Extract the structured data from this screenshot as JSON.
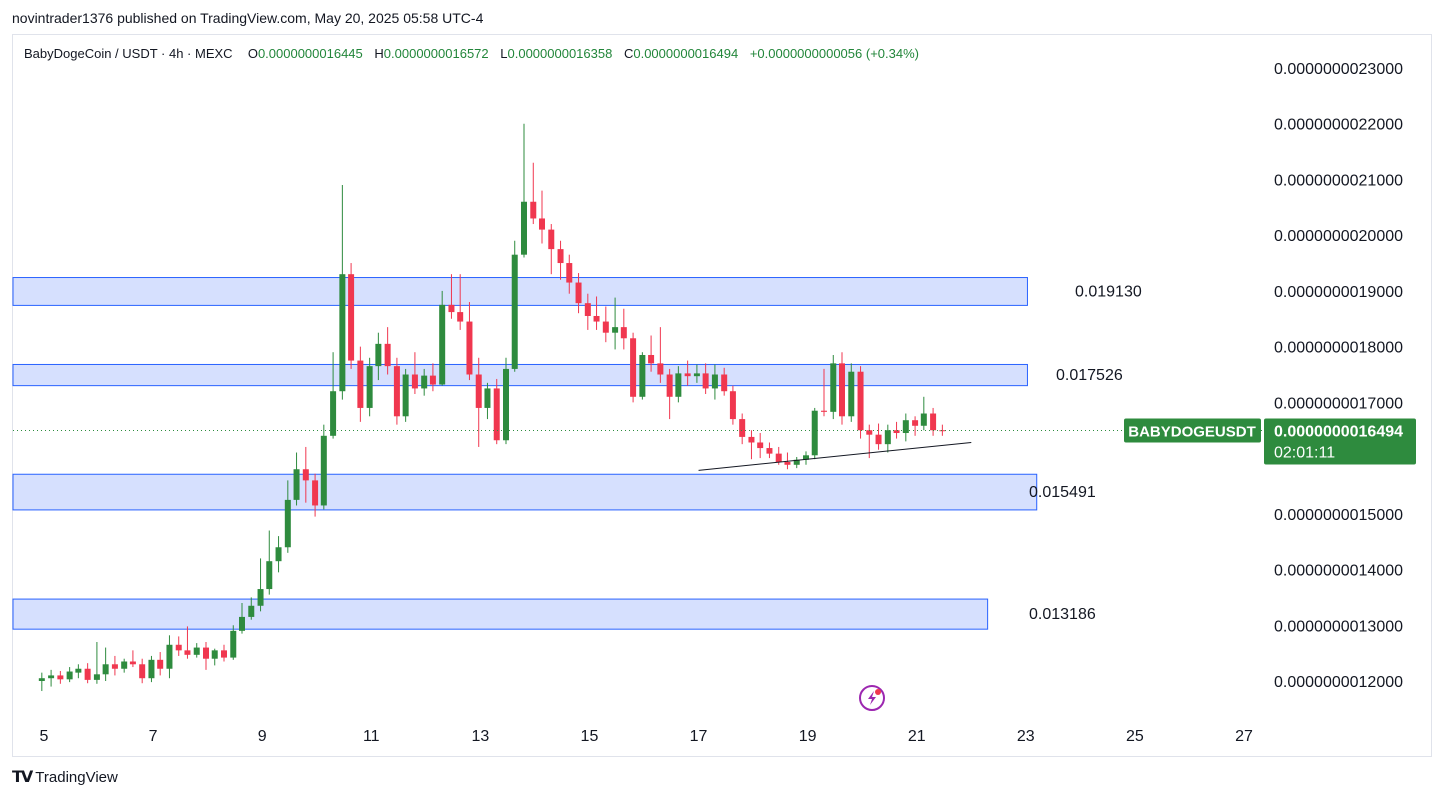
{
  "header": {
    "publisher": "novintrader1376 published on TradingView.com, May 20, 2025 05:58 UTC-4"
  },
  "legend": {
    "symbol": "BabyDogeCoin / USDT · 4h · MEXC",
    "o_label": "O",
    "o_value": "0.0000000016445",
    "h_label": "H",
    "h_value": "0.0000000016572",
    "l_label": "L",
    "l_value": "0.0000000016358",
    "c_label": "C",
    "c_value": "0.0000000016494",
    "change": "+0.0000000000056 (+0.34%)"
  },
  "price_tag": {
    "symbol": "BABYDOGEUSDT",
    "price": "0.0000000016494",
    "countdown": "02:01:11"
  },
  "colors": {
    "up": "#2e8b3e",
    "down": "#f0374f",
    "zone_fill": "#d6e0fe",
    "zone_stroke": "#2962ff",
    "tag_bg": "#2e8b3e"
  },
  "footer": {
    "brand": "TradingView"
  },
  "chart_data": {
    "type": "candlestick",
    "title": "BabyDogeCoin / USDT · 4h · MEXC",
    "price_scale": 1e-09,
    "ylim": [
      1.17,
      2.32
    ],
    "xlim": [
      4.95,
      27.3
    ],
    "x_ticks": [
      5,
      7,
      9,
      11,
      13,
      15,
      17,
      19,
      21,
      23,
      25,
      27
    ],
    "x_tick_labels": [
      "5",
      "7",
      "9",
      "11",
      "13",
      "15",
      "17",
      "19",
      "21",
      "23",
      "25",
      "27"
    ],
    "y_ticks": [
      1.2,
      1.3,
      1.4,
      1.5,
      1.6,
      1.7,
      1.8,
      1.9,
      2.0,
      2.1,
      2.2,
      2.3
    ],
    "y_tick_labels": [
      "0.0000000012000",
      "0.0000000013000",
      "0.0000000014000",
      "0.0000000015000",
      "0.0000000016000",
      "0.0000000017000",
      "0.0000000018000",
      "0.0000000019000",
      "0.0000000020000",
      "0.0000000021000",
      "0.0000000022000",
      "0.0000000023000"
    ],
    "current_price": 1.6494,
    "zones": [
      {
        "label": "0.019130",
        "top": 1.924,
        "bottom": 1.874,
        "x_end": 23.03
      },
      {
        "label": "0.017526",
        "top": 1.768,
        "bottom": 1.73,
        "x_end": 23.03
      },
      {
        "label": "0.015491",
        "top": 1.571,
        "bottom": 1.507,
        "x_end": 23.2
      },
      {
        "label": "0.013186",
        "top": 1.347,
        "bottom": 1.293,
        "x_end": 22.3
      }
    ],
    "trendline": {
      "x": [
        17.0,
        22.0
      ],
      "y": [
        1.578,
        1.628
      ]
    },
    "candles": [
      {
        "x": 4.96,
        "o": 1.2,
        "h": 1.215,
        "l": 1.182,
        "c": 1.205
      },
      {
        "x": 5.13,
        "o": 1.205,
        "h": 1.22,
        "l": 1.19,
        "c": 1.21
      },
      {
        "x": 5.3,
        "o": 1.21,
        "h": 1.218,
        "l": 1.195,
        "c": 1.203
      },
      {
        "x": 5.47,
        "o": 1.203,
        "h": 1.225,
        "l": 1.198,
        "c": 1.217
      },
      {
        "x": 5.63,
        "o": 1.215,
        "h": 1.23,
        "l": 1.205,
        "c": 1.222
      },
      {
        "x": 5.8,
        "o": 1.222,
        "h": 1.232,
        "l": 1.196,
        "c": 1.202
      },
      {
        "x": 5.97,
        "o": 1.202,
        "h": 1.27,
        "l": 1.195,
        "c": 1.212
      },
      {
        "x": 6.13,
        "o": 1.212,
        "h": 1.26,
        "l": 1.2,
        "c": 1.23
      },
      {
        "x": 6.3,
        "o": 1.23,
        "h": 1.245,
        "l": 1.21,
        "c": 1.222
      },
      {
        "x": 6.47,
        "o": 1.222,
        "h": 1.24,
        "l": 1.215,
        "c": 1.235
      },
      {
        "x": 6.63,
        "o": 1.235,
        "h": 1.255,
        "l": 1.225,
        "c": 1.23
      },
      {
        "x": 6.8,
        "o": 1.23,
        "h": 1.24,
        "l": 1.196,
        "c": 1.205
      },
      {
        "x": 6.97,
        "o": 1.205,
        "h": 1.245,
        "l": 1.198,
        "c": 1.238
      },
      {
        "x": 7.13,
        "o": 1.238,
        "h": 1.252,
        "l": 1.21,
        "c": 1.222
      },
      {
        "x": 7.3,
        "o": 1.222,
        "h": 1.282,
        "l": 1.205,
        "c": 1.265
      },
      {
        "x": 7.47,
        "o": 1.265,
        "h": 1.28,
        "l": 1.245,
        "c": 1.255
      },
      {
        "x": 7.63,
        "o": 1.255,
        "h": 1.298,
        "l": 1.24,
        "c": 1.247
      },
      {
        "x": 7.8,
        "o": 1.247,
        "h": 1.268,
        "l": 1.242,
        "c": 1.26
      },
      {
        "x": 7.97,
        "o": 1.26,
        "h": 1.27,
        "l": 1.22,
        "c": 1.24
      },
      {
        "x": 8.13,
        "o": 1.24,
        "h": 1.258,
        "l": 1.228,
        "c": 1.255
      },
      {
        "x": 8.3,
        "o": 1.255,
        "h": 1.265,
        "l": 1.235,
        "c": 1.242
      },
      {
        "x": 8.47,
        "o": 1.242,
        "h": 1.3,
        "l": 1.238,
        "c": 1.29
      },
      {
        "x": 8.63,
        "o": 1.29,
        "h": 1.34,
        "l": 1.285,
        "c": 1.315
      },
      {
        "x": 8.8,
        "o": 1.315,
        "h": 1.35,
        "l": 1.31,
        "c": 1.335
      },
      {
        "x": 8.97,
        "o": 1.335,
        "h": 1.42,
        "l": 1.325,
        "c": 1.365
      },
      {
        "x": 9.13,
        "o": 1.365,
        "h": 1.47,
        "l": 1.355,
        "c": 1.415
      },
      {
        "x": 9.3,
        "o": 1.415,
        "h": 1.46,
        "l": 1.395,
        "c": 1.44
      },
      {
        "x": 9.47,
        "o": 1.44,
        "h": 1.56,
        "l": 1.43,
        "c": 1.525
      },
      {
        "x": 9.63,
        "o": 1.525,
        "h": 1.61,
        "l": 1.515,
        "c": 1.58
      },
      {
        "x": 9.8,
        "o": 1.58,
        "h": 1.62,
        "l": 1.52,
        "c": 1.56
      },
      {
        "x": 9.97,
        "o": 1.56,
        "h": 1.572,
        "l": 1.495,
        "c": 1.515
      },
      {
        "x": 10.13,
        "o": 1.515,
        "h": 1.66,
        "l": 1.508,
        "c": 1.64
      },
      {
        "x": 10.3,
        "o": 1.64,
        "h": 1.79,
        "l": 1.635,
        "c": 1.72
      },
      {
        "x": 10.47,
        "o": 1.72,
        "h": 2.09,
        "l": 1.705,
        "c": 1.93
      },
      {
        "x": 10.63,
        "o": 1.93,
        "h": 1.95,
        "l": 1.76,
        "c": 1.775
      },
      {
        "x": 10.8,
        "o": 1.775,
        "h": 1.8,
        "l": 1.665,
        "c": 1.69
      },
      {
        "x": 10.97,
        "o": 1.69,
        "h": 1.78,
        "l": 1.675,
        "c": 1.765
      },
      {
        "x": 11.13,
        "o": 1.765,
        "h": 1.825,
        "l": 1.74,
        "c": 1.805
      },
      {
        "x": 11.3,
        "o": 1.805,
        "h": 1.835,
        "l": 1.75,
        "c": 1.765
      },
      {
        "x": 11.47,
        "o": 1.765,
        "h": 1.78,
        "l": 1.66,
        "c": 1.675
      },
      {
        "x": 11.63,
        "o": 1.675,
        "h": 1.76,
        "l": 1.665,
        "c": 1.75
      },
      {
        "x": 11.8,
        "o": 1.75,
        "h": 1.79,
        "l": 1.715,
        "c": 1.725
      },
      {
        "x": 11.97,
        "o": 1.725,
        "h": 1.76,
        "l": 1.712,
        "c": 1.748
      },
      {
        "x": 12.13,
        "o": 1.748,
        "h": 1.77,
        "l": 1.72,
        "c": 1.732
      },
      {
        "x": 12.3,
        "o": 1.732,
        "h": 1.9,
        "l": 1.73,
        "c": 1.875
      },
      {
        "x": 12.47,
        "o": 1.875,
        "h": 1.93,
        "l": 1.85,
        "c": 1.862
      },
      {
        "x": 12.63,
        "o": 1.862,
        "h": 1.93,
        "l": 1.83,
        "c": 1.845
      },
      {
        "x": 12.8,
        "o": 1.845,
        "h": 1.88,
        "l": 1.74,
        "c": 1.75
      },
      {
        "x": 12.97,
        "o": 1.75,
        "h": 1.78,
        "l": 1.62,
        "c": 1.69
      },
      {
        "x": 13.13,
        "o": 1.69,
        "h": 1.735,
        "l": 1.67,
        "c": 1.725
      },
      {
        "x": 13.3,
        "o": 1.725,
        "h": 1.742,
        "l": 1.625,
        "c": 1.632
      },
      {
        "x": 13.47,
        "o": 1.632,
        "h": 1.78,
        "l": 1.625,
        "c": 1.76
      },
      {
        "x": 13.63,
        "o": 1.76,
        "h": 1.99,
        "l": 1.755,
        "c": 1.965
      },
      {
        "x": 13.8,
        "o": 1.965,
        "h": 2.2,
        "l": 1.96,
        "c": 2.06
      },
      {
        "x": 13.97,
        "o": 2.06,
        "h": 2.13,
        "l": 2.02,
        "c": 2.03
      },
      {
        "x": 14.13,
        "o": 2.03,
        "h": 2.08,
        "l": 1.985,
        "c": 2.01
      },
      {
        "x": 14.3,
        "o": 2.01,
        "h": 2.02,
        "l": 1.93,
        "c": 1.975
      },
      {
        "x": 14.47,
        "o": 1.975,
        "h": 1.99,
        "l": 1.92,
        "c": 1.95
      },
      {
        "x": 14.63,
        "o": 1.95,
        "h": 1.965,
        "l": 1.895,
        "c": 1.915
      },
      {
        "x": 14.8,
        "o": 1.915,
        "h": 1.932,
        "l": 1.86,
        "c": 1.878
      },
      {
        "x": 14.97,
        "o": 1.878,
        "h": 1.895,
        "l": 1.83,
        "c": 1.855
      },
      {
        "x": 15.13,
        "o": 1.855,
        "h": 1.89,
        "l": 1.83,
        "c": 1.845
      },
      {
        "x": 15.3,
        "o": 1.845,
        "h": 1.872,
        "l": 1.808,
        "c": 1.825
      },
      {
        "x": 15.47,
        "o": 1.825,
        "h": 1.888,
        "l": 1.795,
        "c": 1.835
      },
      {
        "x": 15.63,
        "o": 1.835,
        "h": 1.868,
        "l": 1.795,
        "c": 1.815
      },
      {
        "x": 15.8,
        "o": 1.815,
        "h": 1.825,
        "l": 1.7,
        "c": 1.71
      },
      {
        "x": 15.97,
        "o": 1.71,
        "h": 1.79,
        "l": 1.705,
        "c": 1.785
      },
      {
        "x": 16.13,
        "o": 1.785,
        "h": 1.82,
        "l": 1.755,
        "c": 1.77
      },
      {
        "x": 16.3,
        "o": 1.77,
        "h": 1.835,
        "l": 1.735,
        "c": 1.75
      },
      {
        "x": 16.47,
        "o": 1.75,
        "h": 1.76,
        "l": 1.67,
        "c": 1.71
      },
      {
        "x": 16.63,
        "o": 1.71,
        "h": 1.765,
        "l": 1.7,
        "c": 1.752
      },
      {
        "x": 16.8,
        "o": 1.752,
        "h": 1.775,
        "l": 1.73,
        "c": 1.747
      },
      {
        "x": 16.97,
        "o": 1.747,
        "h": 1.768,
        "l": 1.735,
        "c": 1.752
      },
      {
        "x": 17.13,
        "o": 1.752,
        "h": 1.77,
        "l": 1.715,
        "c": 1.725
      },
      {
        "x": 17.3,
        "o": 1.725,
        "h": 1.768,
        "l": 1.705,
        "c": 1.75
      },
      {
        "x": 17.47,
        "o": 1.75,
        "h": 1.762,
        "l": 1.712,
        "c": 1.72
      },
      {
        "x": 17.63,
        "o": 1.72,
        "h": 1.73,
        "l": 1.66,
        "c": 1.67
      },
      {
        "x": 17.8,
        "o": 1.67,
        "h": 1.68,
        "l": 1.625,
        "c": 1.638
      },
      {
        "x": 17.97,
        "o": 1.638,
        "h": 1.65,
        "l": 1.598,
        "c": 1.628
      },
      {
        "x": 18.13,
        "o": 1.628,
        "h": 1.645,
        "l": 1.6,
        "c": 1.618
      },
      {
        "x": 18.3,
        "o": 1.618,
        "h": 1.628,
        "l": 1.6,
        "c": 1.608
      },
      {
        "x": 18.47,
        "o": 1.608,
        "h": 1.62,
        "l": 1.588,
        "c": 1.593
      },
      {
        "x": 18.63,
        "o": 1.593,
        "h": 1.61,
        "l": 1.58,
        "c": 1.588
      },
      {
        "x": 18.8,
        "o": 1.588,
        "h": 1.602,
        "l": 1.582,
        "c": 1.597
      },
      {
        "x": 18.97,
        "o": 1.597,
        "h": 1.612,
        "l": 1.588,
        "c": 1.605
      },
      {
        "x": 19.13,
        "o": 1.605,
        "h": 1.69,
        "l": 1.598,
        "c": 1.685
      },
      {
        "x": 19.3,
        "o": 1.685,
        "h": 1.76,
        "l": 1.675,
        "c": 1.683
      },
      {
        "x": 19.47,
        "o": 1.683,
        "h": 1.785,
        "l": 1.67,
        "c": 1.77
      },
      {
        "x": 19.63,
        "o": 1.77,
        "h": 1.79,
        "l": 1.66,
        "c": 1.675
      },
      {
        "x": 19.8,
        "o": 1.675,
        "h": 1.77,
        "l": 1.665,
        "c": 1.755
      },
      {
        "x": 19.97,
        "o": 1.755,
        "h": 1.765,
        "l": 1.635,
        "c": 1.65
      },
      {
        "x": 20.13,
        "o": 1.65,
        "h": 1.66,
        "l": 1.6,
        "c": 1.642
      },
      {
        "x": 20.3,
        "o": 1.642,
        "h": 1.662,
        "l": 1.615,
        "c": 1.625
      },
      {
        "x": 20.47,
        "o": 1.625,
        "h": 1.66,
        "l": 1.61,
        "c": 1.65
      },
      {
        "x": 20.63,
        "o": 1.65,
        "h": 1.665,
        "l": 1.635,
        "c": 1.645
      },
      {
        "x": 20.8,
        "o": 1.645,
        "h": 1.68,
        "l": 1.63,
        "c": 1.668
      },
      {
        "x": 20.97,
        "o": 1.668,
        "h": 1.675,
        "l": 1.64,
        "c": 1.658
      },
      {
        "x": 21.13,
        "o": 1.658,
        "h": 1.71,
        "l": 1.65,
        "c": 1.68
      },
      {
        "x": 21.3,
        "o": 1.68,
        "h": 1.69,
        "l": 1.64,
        "c": 1.65
      },
      {
        "x": 21.47,
        "o": 1.65,
        "h": 1.66,
        "l": 1.64,
        "c": 1.649
      }
    ]
  }
}
